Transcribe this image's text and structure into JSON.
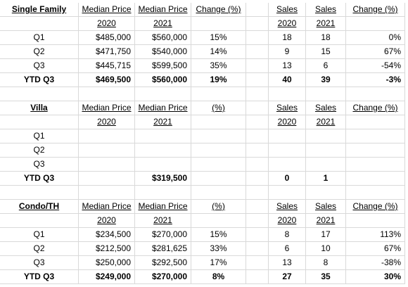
{
  "sections": [
    {
      "title": "Single Family",
      "header": [
        "Median Price",
        "Median Price",
        "Change (%)",
        "Sales",
        "Sales",
        "Change (%)"
      ],
      "years": [
        "2020",
        "2021",
        null,
        "2020",
        "2021",
        null
      ],
      "rows": [
        {
          "label": "Q1",
          "cells": [
            "$485,000",
            "$560,000",
            "15%",
            "18",
            "18",
            "0%"
          ]
        },
        {
          "label": "Q2",
          "cells": [
            "$471,750",
            "$540,000",
            "14%",
            "9",
            "15",
            "67%"
          ]
        },
        {
          "label": "Q3",
          "cells": [
            "$445,715",
            "$599,500",
            "35%",
            "13",
            "6",
            "-54%"
          ]
        },
        {
          "label": "YTD Q3",
          "cells": [
            "$469,500",
            "$560,000",
            "19%",
            "40",
            "39",
            "-3%"
          ]
        }
      ]
    },
    {
      "title": "Villa",
      "header": [
        "Median Price",
        "Median Price",
        "(%)",
        "Sales",
        "Sales",
        "Change (%)"
      ],
      "years": [
        "2020",
        "2021",
        null,
        "2020",
        "2021",
        null
      ],
      "rows": [
        {
          "label": "Q1",
          "cells": [
            null,
            null,
            null,
            null,
            null,
            null
          ]
        },
        {
          "label": "Q2",
          "cells": [
            null,
            null,
            null,
            null,
            null,
            null
          ]
        },
        {
          "label": "Q3",
          "cells": [
            null,
            null,
            null,
            null,
            null,
            null
          ]
        },
        {
          "label": "YTD Q3",
          "cells": [
            null,
            "$319,500",
            null,
            "0",
            "1",
            null
          ]
        }
      ]
    },
    {
      "title": "Condo/TH",
      "header": [
        "Median Price",
        "Median Price",
        "(%)",
        "Sales",
        "Sales",
        "Change (%)"
      ],
      "years": [
        "2020",
        "2021",
        null,
        "2020",
        "2021",
        null
      ],
      "rows": [
        {
          "label": "Q1",
          "cells": [
            "$234,500",
            "$270,000",
            "15%",
            "8",
            "17",
            "113%"
          ]
        },
        {
          "label": "Q2",
          "cells": [
            "$212,500",
            "$281,625",
            "33%",
            "6",
            "10",
            "67%"
          ]
        },
        {
          "label": "Q3",
          "cells": [
            "$250,000",
            "$292,500",
            "17%",
            "13",
            "8",
            "-38%"
          ]
        },
        {
          "label": "YTD Q3",
          "cells": [
            "$249,000",
            "$270,000",
            "8%",
            "27",
            "35",
            "30%"
          ]
        }
      ]
    }
  ]
}
